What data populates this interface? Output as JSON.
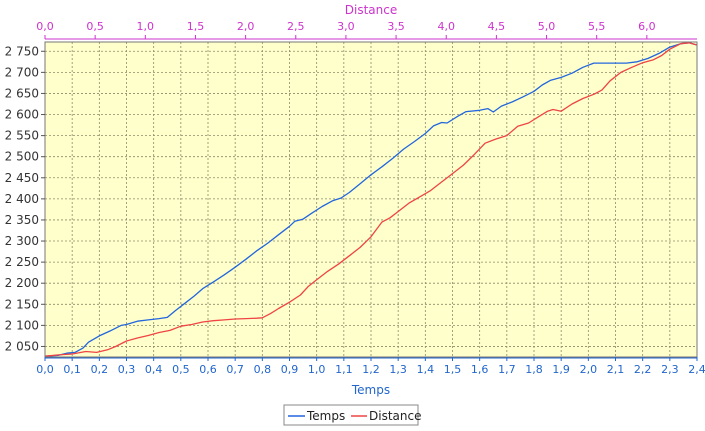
{
  "chart_data": {
    "type": "line",
    "top_axis": {
      "label": "Distance",
      "color": "#cc33cc",
      "range": [
        0,
        6.5
      ],
      "ticks": [
        "0,0",
        "0,5",
        "1,0",
        "1,5",
        "2,0",
        "2,5",
        "3,0",
        "3,5",
        "4,0",
        "4,5",
        "5,0",
        "5,5",
        "6,0"
      ],
      "tick_values": [
        0,
        0.5,
        1.0,
        1.5,
        2.0,
        2.5,
        3.0,
        3.5,
        4.0,
        4.5,
        5.0,
        5.5,
        6.0
      ]
    },
    "bottom_axis": {
      "label": "Temps",
      "color": "#2266cc",
      "range": [
        0,
        2.4
      ],
      "ticks": [
        "0,0",
        "0,1",
        "0,2",
        "0,3",
        "0,4",
        "0,5",
        "0,6",
        "0,7",
        "0,8",
        "0,9",
        "1,0",
        "1,1",
        "1,2",
        "1,3",
        "1,4",
        "1,5",
        "1,6",
        "1,7",
        "1,8",
        "1,9",
        "2,0",
        "2,1",
        "2,2",
        "2,3",
        "2,4"
      ],
      "tick_values": [
        0,
        0.1,
        0.2,
        0.3,
        0.4,
        0.5,
        0.6,
        0.7,
        0.8,
        0.9,
        1.0,
        1.1,
        1.2,
        1.3,
        1.4,
        1.5,
        1.6,
        1.7,
        1.8,
        1.9,
        2.0,
        2.1,
        2.2,
        2.3,
        2.4
      ]
    },
    "y_axis": {
      "range": [
        2025,
        2772
      ],
      "ticks": [
        "2 050",
        "2 100",
        "2 150",
        "2 200",
        "2 250",
        "2 300",
        "2 350",
        "2 400",
        "2 450",
        "2 500",
        "2 550",
        "2 600",
        "2 650",
        "2 700",
        "2 750"
      ],
      "tick_values": [
        2050,
        2100,
        2150,
        2200,
        2250,
        2300,
        2350,
        2400,
        2450,
        2500,
        2550,
        2600,
        2650,
        2700,
        2750
      ]
    },
    "grid": true,
    "plot_background": "#ffffcc",
    "legend_position": "bottom-center",
    "series": [
      {
        "name": "Temps",
        "x_axis": "bottom",
        "color": "#2266dd",
        "points": [
          [
            0.0,
            2027
          ],
          [
            0.05,
            2029
          ],
          [
            0.08,
            2034
          ],
          [
            0.11,
            2036
          ],
          [
            0.14,
            2046
          ],
          [
            0.16,
            2060
          ],
          [
            0.2,
            2075
          ],
          [
            0.24,
            2087
          ],
          [
            0.28,
            2100
          ],
          [
            0.3,
            2102
          ],
          [
            0.34,
            2110
          ],
          [
            0.38,
            2113
          ],
          [
            0.42,
            2116
          ],
          [
            0.45,
            2119
          ],
          [
            0.48,
            2135
          ],
          [
            0.52,
            2155
          ],
          [
            0.55,
            2170
          ],
          [
            0.58,
            2187
          ],
          [
            0.62,
            2203
          ],
          [
            0.66,
            2220
          ],
          [
            0.7,
            2238
          ],
          [
            0.74,
            2257
          ],
          [
            0.78,
            2277
          ],
          [
            0.82,
            2295
          ],
          [
            0.86,
            2315
          ],
          [
            0.9,
            2335
          ],
          [
            0.92,
            2347
          ],
          [
            0.95,
            2352
          ],
          [
            0.98,
            2365
          ],
          [
            1.02,
            2382
          ],
          [
            1.06,
            2396
          ],
          [
            1.09,
            2402
          ],
          [
            1.12,
            2415
          ],
          [
            1.16,
            2436
          ],
          [
            1.2,
            2457
          ],
          [
            1.24,
            2476
          ],
          [
            1.28,
            2496
          ],
          [
            1.32,
            2518
          ],
          [
            1.36,
            2536
          ],
          [
            1.4,
            2555
          ],
          [
            1.43,
            2573
          ],
          [
            1.46,
            2581
          ],
          [
            1.48,
            2580
          ],
          [
            1.52,
            2596
          ],
          [
            1.55,
            2607
          ],
          [
            1.6,
            2610
          ],
          [
            1.63,
            2614
          ],
          [
            1.65,
            2606
          ],
          [
            1.68,
            2620
          ],
          [
            1.72,
            2630
          ],
          [
            1.76,
            2642
          ],
          [
            1.8,
            2655
          ],
          [
            1.83,
            2670
          ],
          [
            1.86,
            2681
          ],
          [
            1.9,
            2688
          ],
          [
            1.94,
            2698
          ],
          [
            1.98,
            2712
          ],
          [
            2.02,
            2722
          ],
          [
            2.06,
            2722
          ],
          [
            2.1,
            2722
          ],
          [
            2.14,
            2722
          ],
          [
            2.18,
            2725
          ],
          [
            2.22,
            2733
          ],
          [
            2.26,
            2745
          ],
          [
            2.3,
            2760
          ],
          [
            2.34,
            2768
          ],
          [
            2.37,
            2770
          ],
          [
            2.4,
            2765
          ]
        ]
      },
      {
        "name": "Distance",
        "x_axis": "bottom",
        "color": "#ee4444",
        "points": [
          [
            0.0,
            2027
          ],
          [
            0.05,
            2030
          ],
          [
            0.1,
            2032
          ],
          [
            0.15,
            2038
          ],
          [
            0.19,
            2036
          ],
          [
            0.23,
            2042
          ],
          [
            0.26,
            2050
          ],
          [
            0.3,
            2063
          ],
          [
            0.34,
            2070
          ],
          [
            0.38,
            2076
          ],
          [
            0.42,
            2083
          ],
          [
            0.46,
            2088
          ],
          [
            0.5,
            2098
          ],
          [
            0.54,
            2102
          ],
          [
            0.58,
            2108
          ],
          [
            0.62,
            2111
          ],
          [
            0.66,
            2113
          ],
          [
            0.7,
            2115
          ],
          [
            0.74,
            2116
          ],
          [
            0.78,
            2117
          ],
          [
            0.8,
            2118
          ],
          [
            0.83,
            2128
          ],
          [
            0.86,
            2140
          ],
          [
            0.9,
            2155
          ],
          [
            0.94,
            2172
          ],
          [
            0.97,
            2193
          ],
          [
            1.0,
            2208
          ],
          [
            1.04,
            2228
          ],
          [
            1.08,
            2245
          ],
          [
            1.12,
            2265
          ],
          [
            1.16,
            2285
          ],
          [
            1.2,
            2310
          ],
          [
            1.24,
            2345
          ],
          [
            1.27,
            2355
          ],
          [
            1.3,
            2370
          ],
          [
            1.34,
            2390
          ],
          [
            1.38,
            2405
          ],
          [
            1.42,
            2420
          ],
          [
            1.46,
            2440
          ],
          [
            1.5,
            2460
          ],
          [
            1.54,
            2480
          ],
          [
            1.58,
            2505
          ],
          [
            1.62,
            2532
          ],
          [
            1.66,
            2542
          ],
          [
            1.7,
            2550
          ],
          [
            1.74,
            2572
          ],
          [
            1.78,
            2580
          ],
          [
            1.82,
            2596
          ],
          [
            1.85,
            2608
          ],
          [
            1.87,
            2612
          ],
          [
            1.9,
            2608
          ],
          [
            1.94,
            2625
          ],
          [
            1.98,
            2638
          ],
          [
            2.02,
            2648
          ],
          [
            2.05,
            2658
          ],
          [
            2.08,
            2680
          ],
          [
            2.12,
            2700
          ],
          [
            2.16,
            2712
          ],
          [
            2.2,
            2723
          ],
          [
            2.24,
            2730
          ],
          [
            2.27,
            2740
          ],
          [
            2.3,
            2755
          ],
          [
            2.34,
            2768
          ],
          [
            2.37,
            2770
          ],
          [
            2.4,
            2765
          ]
        ]
      }
    ]
  }
}
